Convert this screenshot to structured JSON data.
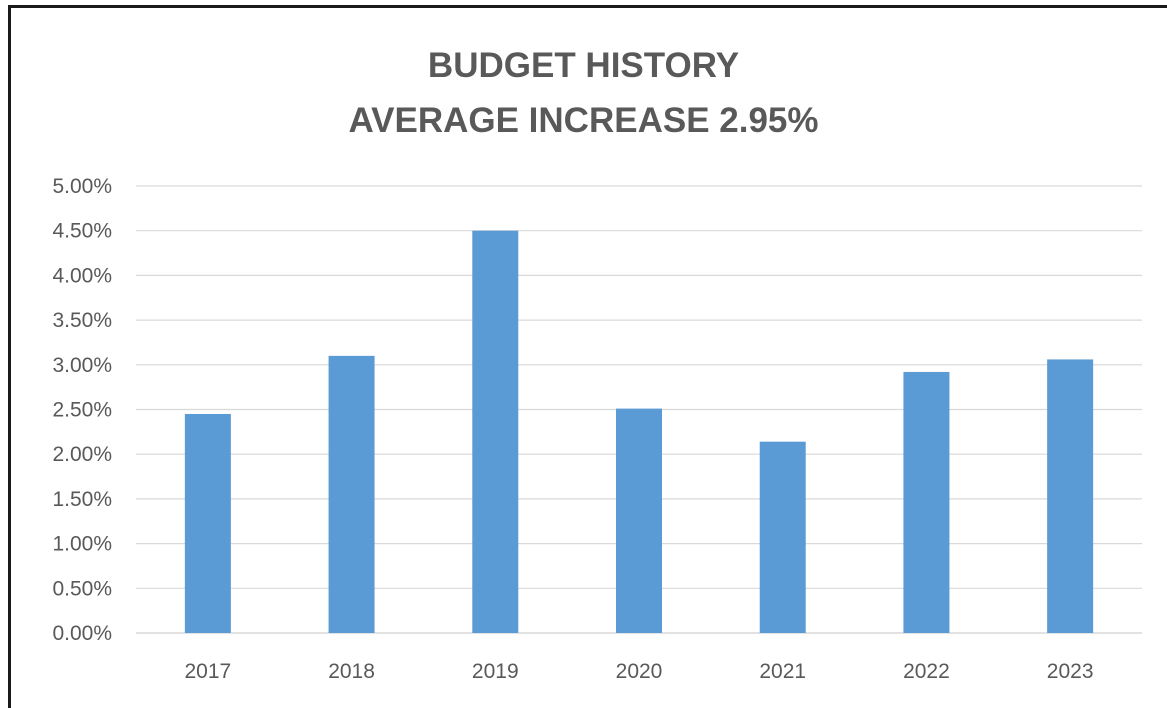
{
  "chart_data": {
    "type": "bar",
    "title": [
      "BUDGET HISTORY",
      "AVERAGE INCREASE 2.95%"
    ],
    "categories": [
      "2017",
      "2018",
      "2019",
      "2020",
      "2021",
      "2022",
      "2023"
    ],
    "values": [
      2.45,
      3.1,
      4.5,
      2.51,
      2.14,
      2.92,
      3.06
    ],
    "unit": "%",
    "xlabel": "",
    "ylabel": "",
    "ylim": [
      0,
      5
    ],
    "yticks": [
      "0.00%",
      "0.50%",
      "1.00%",
      "1.50%",
      "2.00%",
      "2.50%",
      "3.00%",
      "3.50%",
      "4.00%",
      "4.50%",
      "5.00%"
    ],
    "grid": true,
    "legend": "none",
    "bar_color": "#5b9bd5",
    "grid_color": "#d9d9d9"
  }
}
